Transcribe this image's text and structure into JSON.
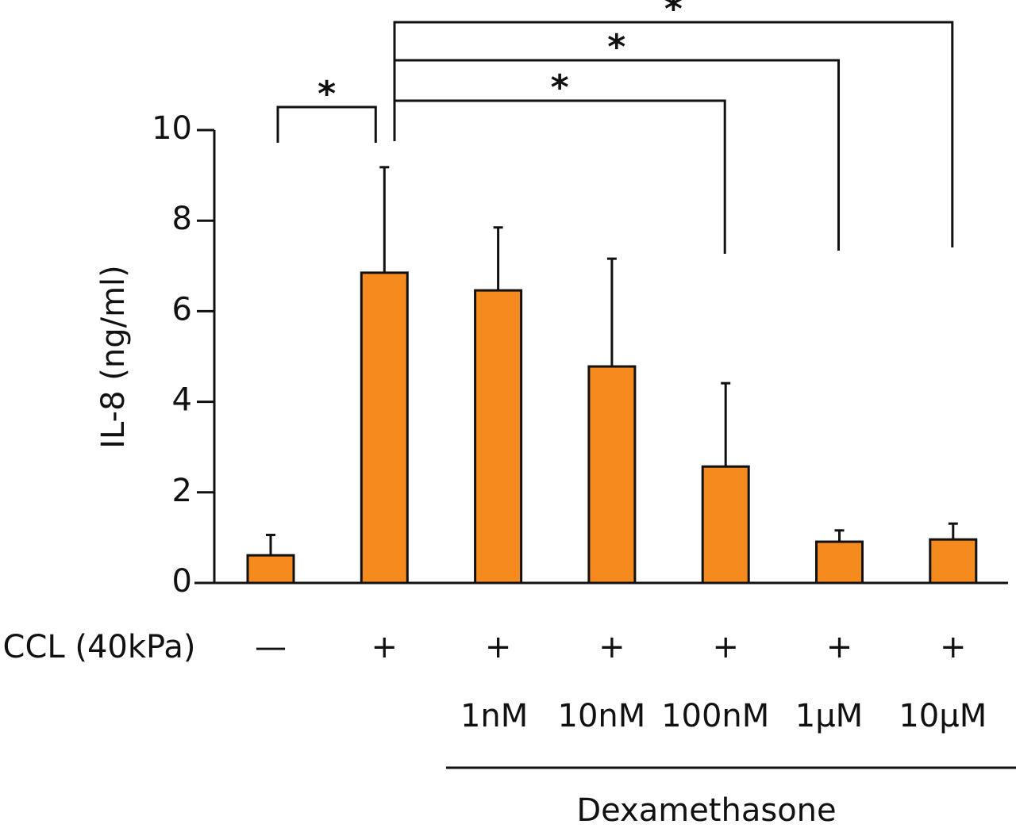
{
  "chart_data": {
    "type": "bar",
    "y_label": "IL-8  (ng/ml)",
    "row_label": "CCL (40kPa)",
    "categories": [
      "—",
      "+",
      "+",
      "+",
      "+",
      "+",
      "+"
    ],
    "dose_labels": [
      null,
      null,
      "1nM",
      "10nM",
      "100nM",
      "1μM",
      "10μM"
    ],
    "group_label": "Dexamethasone",
    "values": [
      0.61,
      6.85,
      6.46,
      4.78,
      2.57,
      0.91,
      0.96
    ],
    "errors": [
      0.45,
      2.33,
      1.39,
      2.38,
      1.84,
      0.25,
      0.35
    ],
    "color": "#f58a1f",
    "ylim": [
      0,
      10
    ],
    "yticks": [
      0,
      2,
      4,
      6,
      8,
      10
    ],
    "comparisons": [
      {
        "groups": [
          0,
          1
        ],
        "label": "*"
      },
      {
        "groups": [
          1,
          4
        ],
        "label": "*"
      },
      {
        "groups": [
          1,
          5
        ],
        "label": "*"
      },
      {
        "groups": [
          1,
          6
        ],
        "label": "*"
      }
    ]
  }
}
